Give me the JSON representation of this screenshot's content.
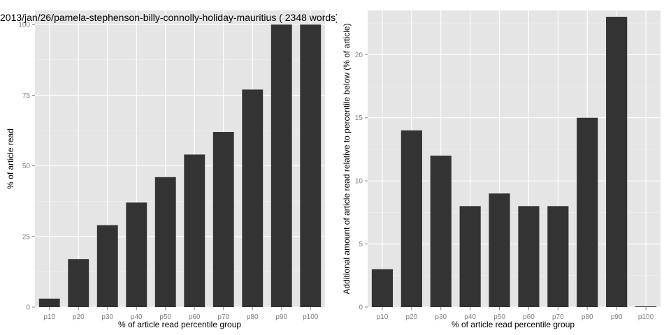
{
  "chart_data": [
    {
      "type": "bar",
      "title": "2013/jan/26/pamela-stephenson-billy-connolly-holiday-mauritius ( 2348 words)",
      "xlabel": "% of article read percentile group",
      "ylabel": "% of article read",
      "categories": [
        "p10",
        "p20",
        "p30",
        "p40",
        "p50",
        "p60",
        "p70",
        "p80",
        "p90",
        "p100"
      ],
      "values": [
        3,
        17,
        29,
        37,
        46,
        54,
        62,
        77,
        100,
        100
      ],
      "ylim": [
        0,
        105
      ],
      "yticks": [
        0,
        25,
        50,
        75,
        100
      ],
      "ytick_labels": [
        "0",
        "25",
        "50",
        "75",
        "100"
      ],
      "bar_color": "#333333",
      "panel_color": "#e5e5e5",
      "grid": true
    },
    {
      "type": "bar",
      "title": "",
      "xlabel": "% of article read percentile group",
      "ylabel": "Additional amount of article read relative to percentile below (% of article)",
      "categories": [
        "p10",
        "p20",
        "p30",
        "p40",
        "p50",
        "p60",
        "p70",
        "p80",
        "p90",
        "p100"
      ],
      "values": [
        3,
        14,
        12,
        8,
        9,
        8,
        8,
        15,
        23,
        0
      ],
      "ylim": [
        0,
        23.5
      ],
      "yticks": [
        0,
        5,
        10,
        15,
        20
      ],
      "ytick_labels": [
        "0",
        "5",
        "10",
        "15",
        "20"
      ],
      "bar_color": "#333333",
      "panel_color": "#e5e5e5",
      "grid": true
    }
  ]
}
